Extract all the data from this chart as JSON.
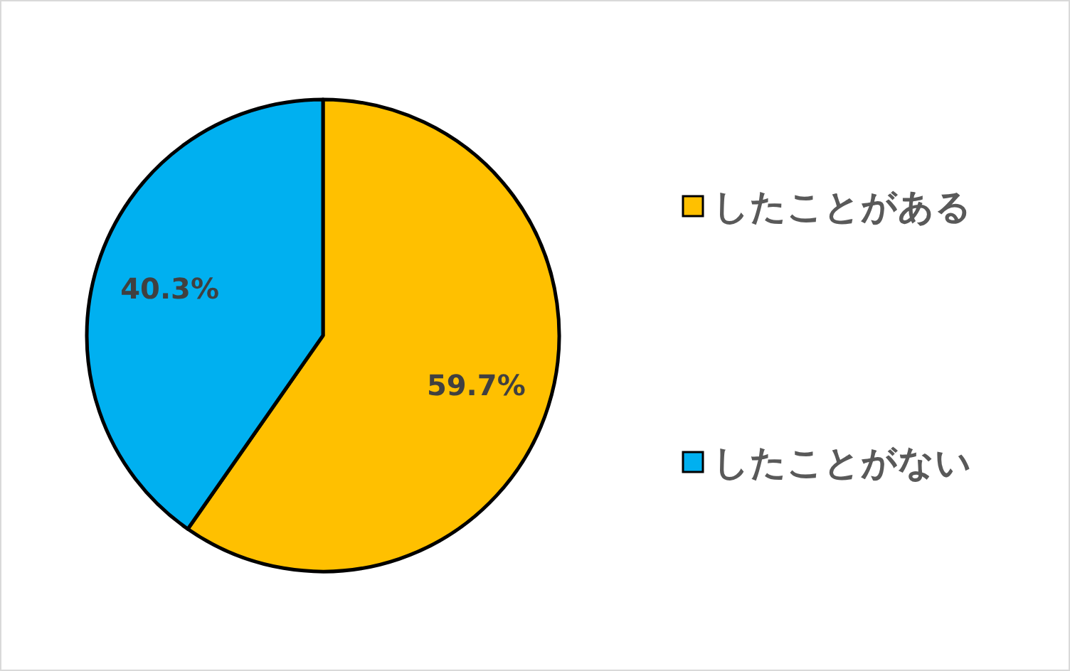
{
  "chart_data": {
    "type": "pie",
    "categories": [
      "したことがある",
      "したことがない"
    ],
    "values": [
      59.7,
      40.3
    ],
    "colors": [
      "#ffc000",
      "#00b0f0"
    ],
    "value_labels": [
      "59.7%",
      "40.3%"
    ],
    "legend": "right"
  }
}
